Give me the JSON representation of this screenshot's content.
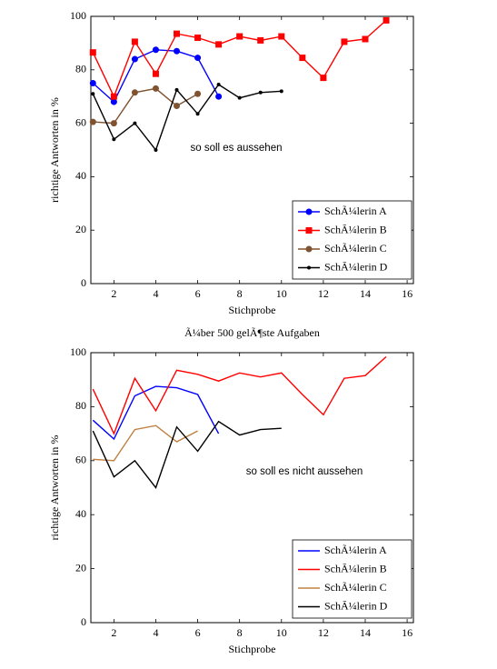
{
  "chart_data": [
    {
      "type": "line",
      "annotation": "so soll es aussehen",
      "xlabel": "Stichprobe",
      "ylabel": "richtige Antworten in %",
      "xlim": [
        0.9,
        16.3
      ],
      "ylim": [
        0,
        100
      ],
      "xticks": [
        2,
        4,
        6,
        8,
        10,
        12,
        14,
        16
      ],
      "yticks": [
        0,
        20,
        40,
        60,
        80,
        100
      ],
      "legend": "lower right",
      "markers": true,
      "series": [
        {
          "name": "SchÃ¼lerin A",
          "color": "#0000ff",
          "marker": "circle",
          "x": [
            1,
            2,
            3,
            4,
            5,
            6,
            7
          ],
          "values": [
            75,
            68,
            84,
            87.5,
            87,
            84.5,
            70
          ]
        },
        {
          "name": "SchÃ¼lerin B",
          "color": "#ff0000",
          "marker": "square",
          "x": [
            1,
            2,
            3,
            4,
            5,
            6,
            7,
            8,
            9,
            10,
            11,
            12,
            13,
            14,
            15
          ],
          "values": [
            86.5,
            70,
            90.5,
            78.5,
            93.5,
            92,
            89.5,
            92.5,
            91,
            92.5,
            84.5,
            77,
            90.5,
            91.5,
            98.5
          ]
        },
        {
          "name": "SchÃ¼lerin C",
          "color": "#7f5230",
          "marker": "circle",
          "x": [
            1,
            2,
            3,
            4,
            5,
            6
          ],
          "values": [
            60.5,
            60,
            71.5,
            73,
            66.5,
            71
          ]
        },
        {
          "name": "SchÃ¼lerin D",
          "color": "#000000",
          "marker": "dot",
          "x": [
            1,
            2,
            3,
            4,
            5,
            6,
            7,
            8,
            9,
            10
          ],
          "values": [
            71,
            54,
            60,
            50,
            72.5,
            63.5,
            74.5,
            69.5,
            71.5,
            72
          ]
        }
      ]
    },
    {
      "type": "line",
      "title": "Ã¼ber 500 gelÃ¶ste Aufgaben",
      "annotation": "so soll es nicht aussehen",
      "xlabel": "Stichprobe",
      "ylabel": "richtige Antworten in %",
      "xlim": [
        0.9,
        16.3
      ],
      "ylim": [
        0,
        100
      ],
      "xticks": [
        2,
        4,
        6,
        8,
        10,
        12,
        14,
        16
      ],
      "yticks": [
        0,
        20,
        40,
        60,
        80,
        100
      ],
      "legend": "lower right",
      "markers": false,
      "series": [
        {
          "name": "SchÃ¼lerin A",
          "color": "#0000ff",
          "x": [
            1,
            2,
            3,
            4,
            5,
            6,
            7
          ],
          "values": [
            75,
            68,
            84,
            87.5,
            87,
            84.5,
            70
          ]
        },
        {
          "name": "SchÃ¼lerin B",
          "color": "#ff0000",
          "x": [
            1,
            2,
            3,
            4,
            5,
            6,
            7,
            8,
            9,
            10,
            11,
            12,
            13,
            14,
            15
          ],
          "values": [
            86.5,
            70,
            90.5,
            78.5,
            93.5,
            92,
            89.5,
            92.5,
            91,
            92.5,
            84.5,
            77,
            90.5,
            91.5,
            98.5
          ]
        },
        {
          "name": "SchÃ¼lerin C",
          "color": "#bf8040",
          "x": [
            1,
            2,
            3,
            4,
            5,
            6
          ],
          "values": [
            60.5,
            60,
            71.5,
            73,
            67,
            71
          ]
        },
        {
          "name": "SchÃ¼lerin D",
          "color": "#000000",
          "x": [
            1,
            2,
            3,
            4,
            5,
            6,
            7,
            8,
            9,
            10
          ],
          "values": [
            71,
            54,
            60,
            50,
            72.5,
            63.5,
            74.5,
            69.5,
            71.5,
            72
          ]
        }
      ]
    }
  ]
}
